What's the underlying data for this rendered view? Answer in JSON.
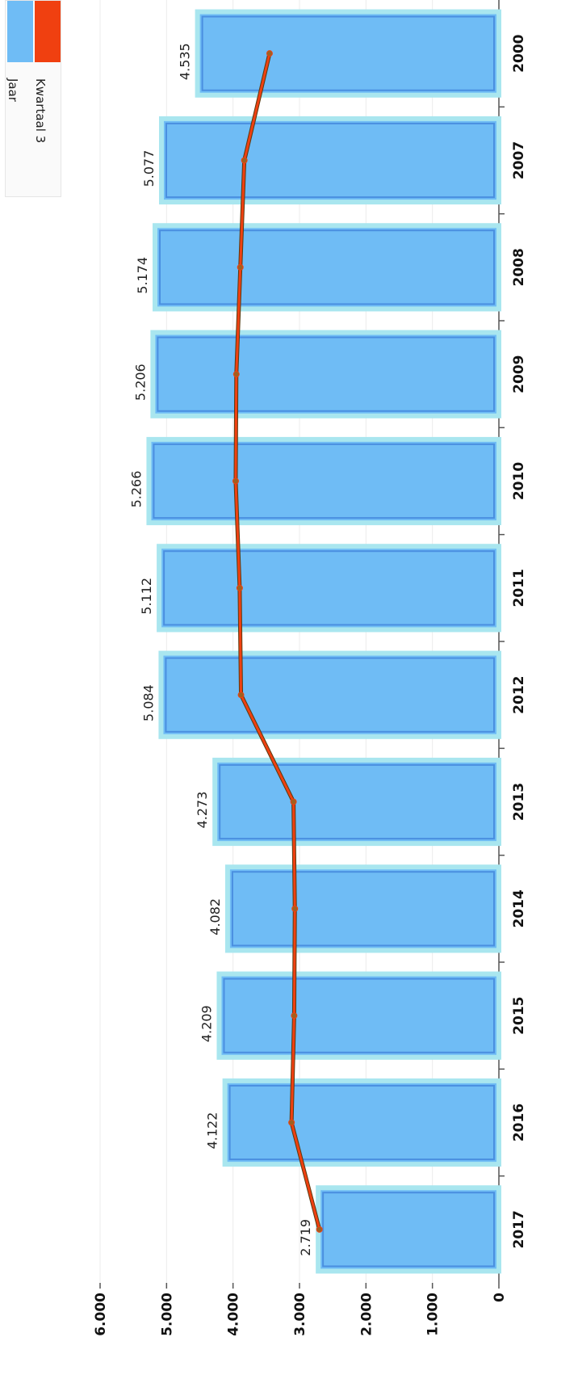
{
  "chart_data": {
    "type": "bar",
    "orientation": "vertical (page rotated 90° clockwise)",
    "categories": [
      "2000",
      "2007",
      "2008",
      "2009",
      "2010",
      "2011",
      "2012",
      "2013",
      "2014",
      "2015",
      "2016",
      "2017"
    ],
    "series": [
      {
        "name": "Jaar",
        "type": "bar",
        "color": "#6fbcf5",
        "values": [
          4535,
          5077,
          5174,
          5206,
          5266,
          5112,
          5084,
          4273,
          4082,
          4209,
          4122,
          2719
        ],
        "data_labels": [
          "4.535",
          "5.077",
          "5.174",
          "5.206",
          "5.266",
          "5.112",
          "5.084",
          "4.273",
          "4.082",
          "4.209",
          "4.122",
          "2.719"
        ]
      },
      {
        "name": "Kwartaal 3",
        "type": "line",
        "color": "#f04010",
        "values": [
          3450,
          3830,
          3890,
          3950,
          3960,
          3900,
          3880,
          3090,
          3070,
          3080,
          3120,
          2700
        ]
      }
    ],
    "y_ticks": [
      "0",
      "1.000",
      "2.000",
      "3.000",
      "4.000",
      "5.000",
      "6.000"
    ],
    "ylim": [
      0,
      6000
    ],
    "title": "",
    "xlabel": "",
    "ylabel": "",
    "grid": "horizontal gridlines",
    "legend_position": "top-left"
  }
}
